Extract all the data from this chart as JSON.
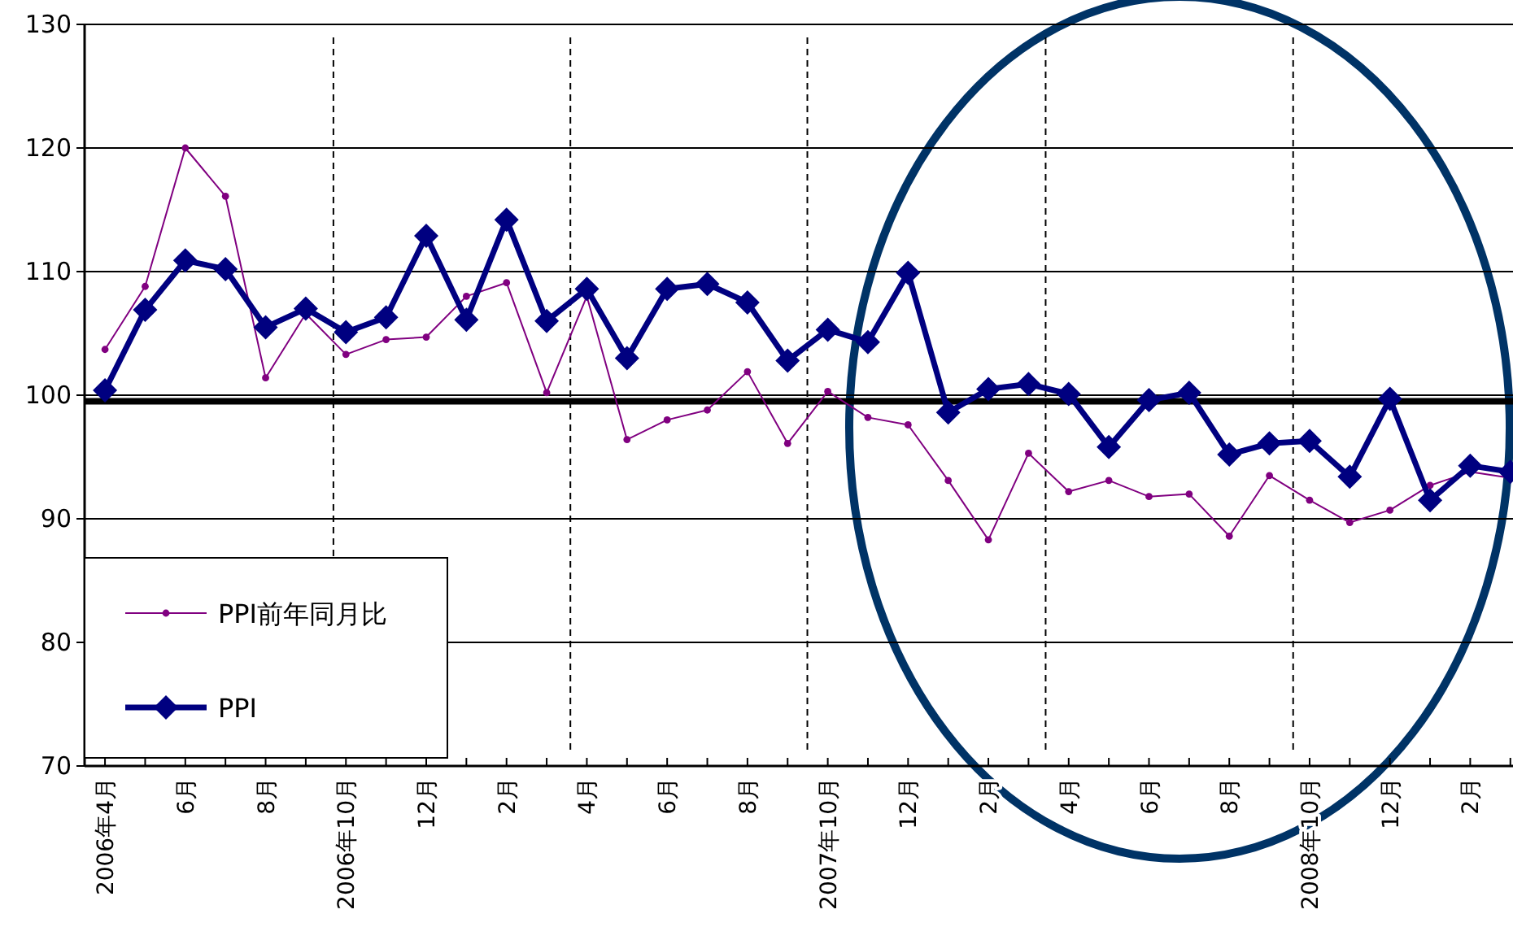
{
  "chart_data": {
    "type": "line",
    "x": [
      "2006-04",
      "2006-05",
      "2006-06",
      "2006-07",
      "2006-08",
      "2006-09",
      "2006-10",
      "2006-11",
      "2006-12",
      "2007-01",
      "2007-02",
      "2007-03",
      "2007-04",
      "2007-05",
      "2007-06",
      "2007-07",
      "2007-08",
      "2007-09",
      "2007-10",
      "2007-11",
      "2007-12",
      "2008-01",
      "2008-02",
      "2008-03",
      "2008-04",
      "2008-05",
      "2008-06",
      "2008-07",
      "2008-08",
      "2008-09",
      "2008-10",
      "2008-11",
      "2008-12",
      "2009-01",
      "2009-02",
      "2009-03"
    ],
    "series": [
      {
        "name": "PPI前年同月比",
        "color": "#800080",
        "marker": "circle",
        "values": [
          103.7,
          108.8,
          120.0,
          116.1,
          101.4,
          106.6,
          103.3,
          104.5,
          104.7,
          108.0,
          109.1,
          100.2,
          108.0,
          96.4,
          98.0,
          98.8,
          101.9,
          96.1,
          100.3,
          98.2,
          97.6,
          93.1,
          88.3,
          95.3,
          92.2,
          93.1,
          91.8,
          92.0,
          88.6,
          93.5,
          91.5,
          89.7,
          90.7,
          92.7,
          93.8,
          93.3
        ]
      },
      {
        "name": "PPI",
        "color": "#000080",
        "marker": "diamond",
        "values": [
          100.4,
          106.9,
          110.9,
          110.2,
          105.5,
          107.0,
          105.1,
          106.3,
          112.9,
          106.1,
          114.2,
          106.0,
          108.6,
          103.0,
          108.6,
          109.0,
          107.5,
          102.8,
          105.3,
          104.3,
          109.9,
          98.6,
          100.5,
          100.9,
          100.1,
          95.8,
          99.6,
          100.2,
          95.2,
          96.1,
          96.3,
          93.4,
          99.7,
          91.5,
          94.3,
          93.8
        ]
      }
    ],
    "xlim": [
      "2006-03-16",
      "2009-03-03"
    ],
    "xticks": [
      {
        "value": "2006-04",
        "label": "2006年4月"
      },
      {
        "value": "2006-05",
        "label": null
      },
      {
        "value": "2006-06",
        "label": "6月"
      },
      {
        "value": "2006-07",
        "label": null
      },
      {
        "value": "2006-08",
        "label": "8月"
      },
      {
        "value": "2006-09",
        "label": null
      },
      {
        "value": "2006-10",
        "label": "2006年10月"
      },
      {
        "value": "2006-11",
        "label": null
      },
      {
        "value": "2006-12",
        "label": "12月"
      },
      {
        "value": "2007-01",
        "label": null
      },
      {
        "value": "2007-02",
        "label": "2月"
      },
      {
        "value": "2007-03",
        "label": null
      },
      {
        "value": "2007-04",
        "label": "4月"
      },
      {
        "value": "2007-05",
        "label": null
      },
      {
        "value": "2007-06",
        "label": "6月"
      },
      {
        "value": "2007-07",
        "label": null
      },
      {
        "value": "2007-08",
        "label": "8月"
      },
      {
        "value": "2007-09",
        "label": null
      },
      {
        "value": "2007-10",
        "label": "2007年10月"
      },
      {
        "value": "2007-11",
        "label": null
      },
      {
        "value": "2007-12",
        "label": "12月"
      },
      {
        "value": "2008-01",
        "label": null
      },
      {
        "value": "2008-02",
        "label": "2月"
      },
      {
        "value": "2008-03",
        "label": null
      },
      {
        "value": "2008-04",
        "label": "4月"
      },
      {
        "value": "2008-05",
        "label": null
      },
      {
        "value": "2008-06",
        "label": "6月"
      },
      {
        "value": "2008-07",
        "label": null
      },
      {
        "value": "2008-08",
        "label": "8月"
      },
      {
        "value": "2008-09",
        "label": null
      },
      {
        "value": "2008-10",
        "label": "2008年10月"
      },
      {
        "value": "2008-11",
        "label": null
      },
      {
        "value": "2008-12",
        "label": "12月"
      },
      {
        "value": "2009-01",
        "label": null
      },
      {
        "value": "2009-02",
        "label": "2月"
      },
      {
        "value": "2009-03",
        "label": null
      }
    ],
    "ylim": [
      70,
      130
    ],
    "yticks": [
      70,
      80,
      90,
      100,
      110,
      120,
      130
    ],
    "grid": "y",
    "legend": "bottom left",
    "ref_lines": [
      {
        "axis": "y",
        "value": 99.5,
        "color": "#000000",
        "line_style": "solid"
      },
      {
        "axis": "x",
        "value": "2006-09-22",
        "color": "#000000",
        "line_style": "dashed"
      },
      {
        "axis": "x",
        "value": "2007-03-19",
        "color": "#000000",
        "line_style": "dashed"
      },
      {
        "axis": "x",
        "value": "2007-09-16",
        "color": "#000000",
        "line_style": "dashed"
      },
      {
        "axis": "x",
        "value": "2008-03-14",
        "color": "#000000",
        "line_style": "dashed"
      },
      {
        "axis": "x",
        "value": "2008-09-19",
        "color": "#000000",
        "line_style": "dashed"
      }
    ]
  }
}
